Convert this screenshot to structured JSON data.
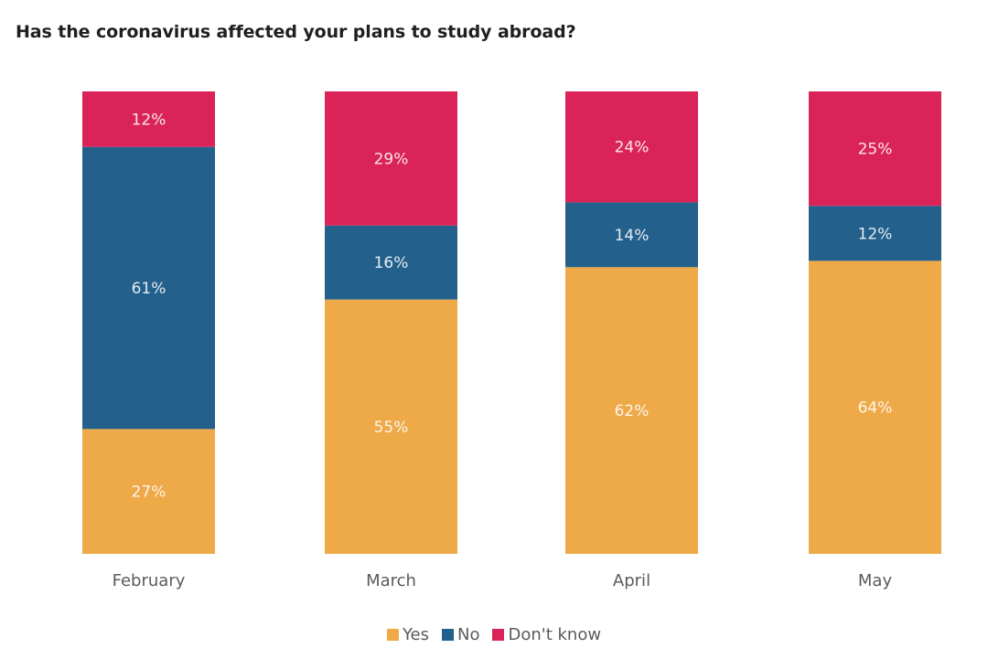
{
  "chart_data": {
    "type": "bar",
    "stacked": true,
    "title": "Has the coronavirus affected your plans to study abroad?",
    "xlabel": "",
    "ylabel": "",
    "categories": [
      "February",
      "March",
      "April",
      "May"
    ],
    "series": [
      {
        "name": "Yes",
        "color": "#eeaa48",
        "values": [
          27,
          55,
          62,
          64
        ],
        "labels": [
          "27%",
          "55%",
          "62%",
          "64%"
        ]
      },
      {
        "name": "No",
        "color": "#23608c",
        "values": [
          61,
          16,
          14,
          12
        ],
        "labels": [
          "61%",
          "16%",
          "14%",
          "12%"
        ]
      },
      {
        "name": "Don't know",
        "color": "#da2459",
        "values": [
          12,
          29,
          24,
          25
        ],
        "labels": [
          "12%",
          "29%",
          "24%",
          "25%"
        ]
      }
    ],
    "ylim": [
      0,
      100
    ],
    "grid": false,
    "legend_position": "bottom-center"
  }
}
